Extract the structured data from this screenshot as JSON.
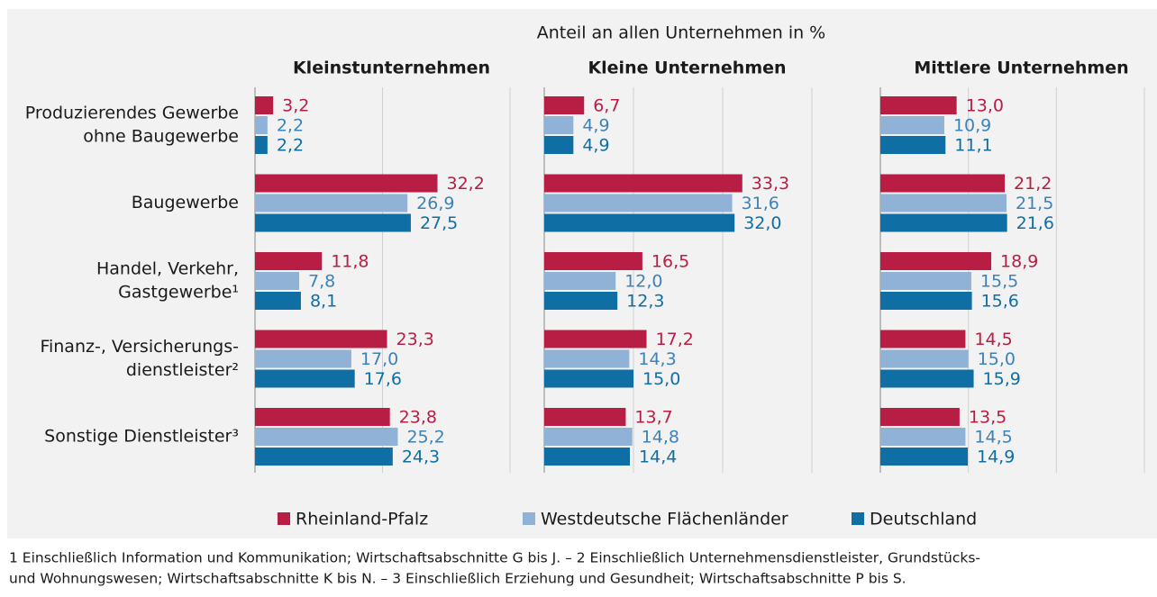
{
  "chart_data": {
    "type": "bar",
    "orientation": "horizontal",
    "title": "Anteil an allen Unternehmen in %",
    "categories": [
      [
        "Produzierendes Gewerbe",
        "ohne Baugewerbe"
      ],
      [
        "Baugewerbe"
      ],
      [
        "Handel, Verkehr,",
        "Gastgewerbe¹"
      ],
      [
        "Finanz-, Versicherungs-",
        "dienstleister²"
      ],
      [
        "Sonstige Dienstleister³"
      ]
    ],
    "series": [
      {
        "name": "Rheinland-Pfalz",
        "color": "#b81e43",
        "label_color": "#b81e43"
      },
      {
        "name": "Westdeutsche Flächenländer",
        "color": "#8fb2d6",
        "label_color": "#3d82b8"
      },
      {
        "name": "Deutschland",
        "color": "#0f6fa5",
        "label_color": "#0f6fa5"
      }
    ],
    "grid": true,
    "panels": [
      {
        "title": "Kleinstunternehmen",
        "xlim": [
          0,
          45
        ],
        "xticks": [
          0,
          22.5,
          45
        ],
        "values": [
          [
            3.2,
            32.2,
            11.8,
            23.3,
            23.8
          ],
          [
            2.2,
            26.9,
            7.8,
            17.0,
            25.2
          ],
          [
            2.2,
            27.5,
            8.1,
            17.6,
            24.3
          ]
        ],
        "value_labels": [
          [
            "3,2",
            "32,2",
            "11,8",
            "23,3",
            "23,8"
          ],
          [
            "2,2",
            "26,9",
            "7,8",
            "17,0",
            "25,2"
          ],
          [
            "2,2",
            "27,5",
            "8,1",
            "17,6",
            "24,3"
          ]
        ]
      },
      {
        "title": "Kleine Unternehmen",
        "xlim": [
          0,
          45
        ],
        "xticks": [
          0,
          15,
          30,
          45
        ],
        "values": [
          [
            6.7,
            33.3,
            16.5,
            17.2,
            13.7
          ],
          [
            4.9,
            31.6,
            12.0,
            14.3,
            14.8
          ],
          [
            4.9,
            32.0,
            12.3,
            15.0,
            14.4
          ]
        ],
        "value_labels": [
          [
            "6,7",
            "33,3",
            "16,5",
            "17,2",
            "13,7"
          ],
          [
            "4,9",
            "31,6",
            "12,0",
            "14,3",
            "14,8"
          ],
          [
            "4,9",
            "32,0",
            "12,3",
            "15,0",
            "14,4"
          ]
        ]
      },
      {
        "title": "Mittlere Unternehmen",
        "xlim": [
          0,
          45
        ],
        "xticks": [
          0,
          15,
          30,
          45
        ],
        "values": [
          [
            13.0,
            21.2,
            18.9,
            14.5,
            13.5
          ],
          [
            10.9,
            21.5,
            15.5,
            15.0,
            14.5
          ],
          [
            11.1,
            21.6,
            15.6,
            15.9,
            14.9
          ]
        ],
        "value_labels": [
          [
            "13,0",
            "21,2",
            "18,9",
            "14,5",
            "13,5"
          ],
          [
            "10,9",
            "21,5",
            "15,5",
            "15,0",
            "14,5"
          ],
          [
            "11,1",
            "21,6",
            "15,6",
            "15,9",
            "14,9"
          ]
        ]
      }
    ],
    "footnote": [
      "1 Einschließlich Information und Kommunikation; Wirtschaftsabschnitte G bis J. – 2 Einschließlich Unternehmensdienstleister, Grundstücks-",
      "und Wohnungswesen; Wirtschaftsabschnitte K bis N. – 3 Einschließlich Erziehung und Gesundheit; Wirtschaftsabschnitte P bis S."
    ]
  }
}
